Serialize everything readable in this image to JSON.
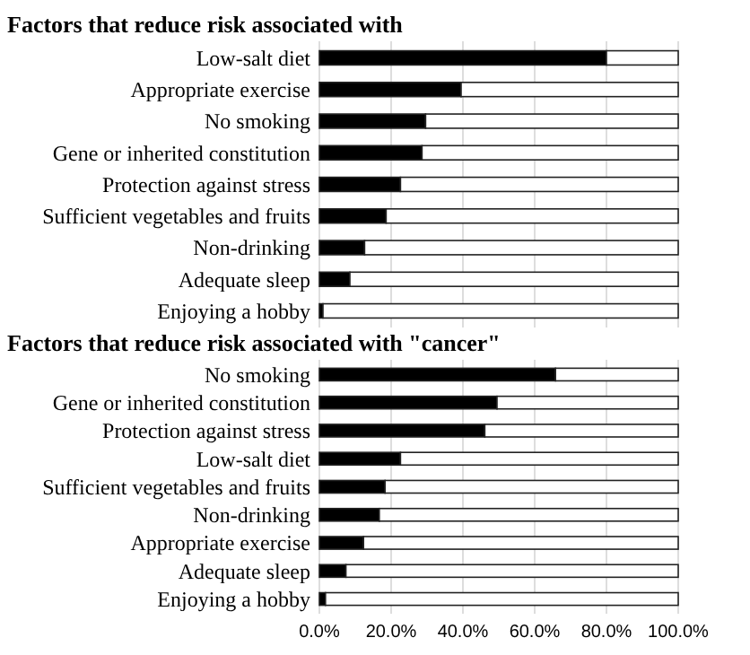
{
  "chart_data": [
    {
      "type": "bar",
      "orientation": "horizontal",
      "stacked": true,
      "title": "Factors that reduce risk associated with",
      "categories": [
        "Low-salt diet",
        "Appropriate exercise",
        "No smoking",
        "Gene or inherited constitution",
        "Protection against stress",
        "Sufficient vegetables and fruits",
        "Non-drinking",
        "Adequate sleep",
        "Enjoying a hobby"
      ],
      "series": [
        {
          "color": "#000000",
          "values": [
            80,
            39.5,
            29.6,
            28.6,
            22.6,
            18.6,
            12.6,
            8.5,
            1
          ]
        },
        {
          "color": "#ffffff",
          "values": [
            20,
            60.5,
            70.4,
            71.4,
            77.4,
            81.4,
            87.4,
            91.5,
            99
          ]
        }
      ],
      "xlim": [
        0,
        100
      ],
      "xticks": [
        0,
        20,
        40,
        60,
        80,
        100
      ],
      "grid": "x",
      "tick_labels": "y"
    },
    {
      "type": "bar",
      "orientation": "horizontal",
      "stacked": true,
      "title": "Factors that reduce risk associated with \"cancer\"",
      "categories": [
        "No smoking",
        "Gene or inherited constitution",
        "Protection against stress",
        "Low-salt diet",
        "Sufficient vegetables and fruits",
        "Non-drinking",
        "Appropriate exercise",
        "Adequate sleep",
        "Enjoying a hobby"
      ],
      "series": [
        {
          "color": "#000000",
          "values": [
            65.8,
            49.5,
            46.1,
            22.6,
            18.3,
            16.7,
            12.3,
            7.4,
            1.7
          ]
        },
        {
          "color": "#ffffff",
          "values": [
            34.2,
            50.5,
            53.9,
            77.4,
            81.7,
            83.3,
            87.7,
            92.6,
            98.3
          ]
        }
      ],
      "xlim": [
        0,
        100
      ],
      "xticks": [
        {
          "value": 0,
          "label": "0.0%"
        },
        {
          "value": 20,
          "label": "20.0%"
        },
        {
          "value": 40,
          "label": "40.0%"
        },
        {
          "value": 60,
          "label": "60.0%"
        },
        {
          "value": 80,
          "label": "80.0%"
        },
        {
          "value": 100,
          "label": "100.0%"
        }
      ],
      "grid": "x"
    }
  ]
}
